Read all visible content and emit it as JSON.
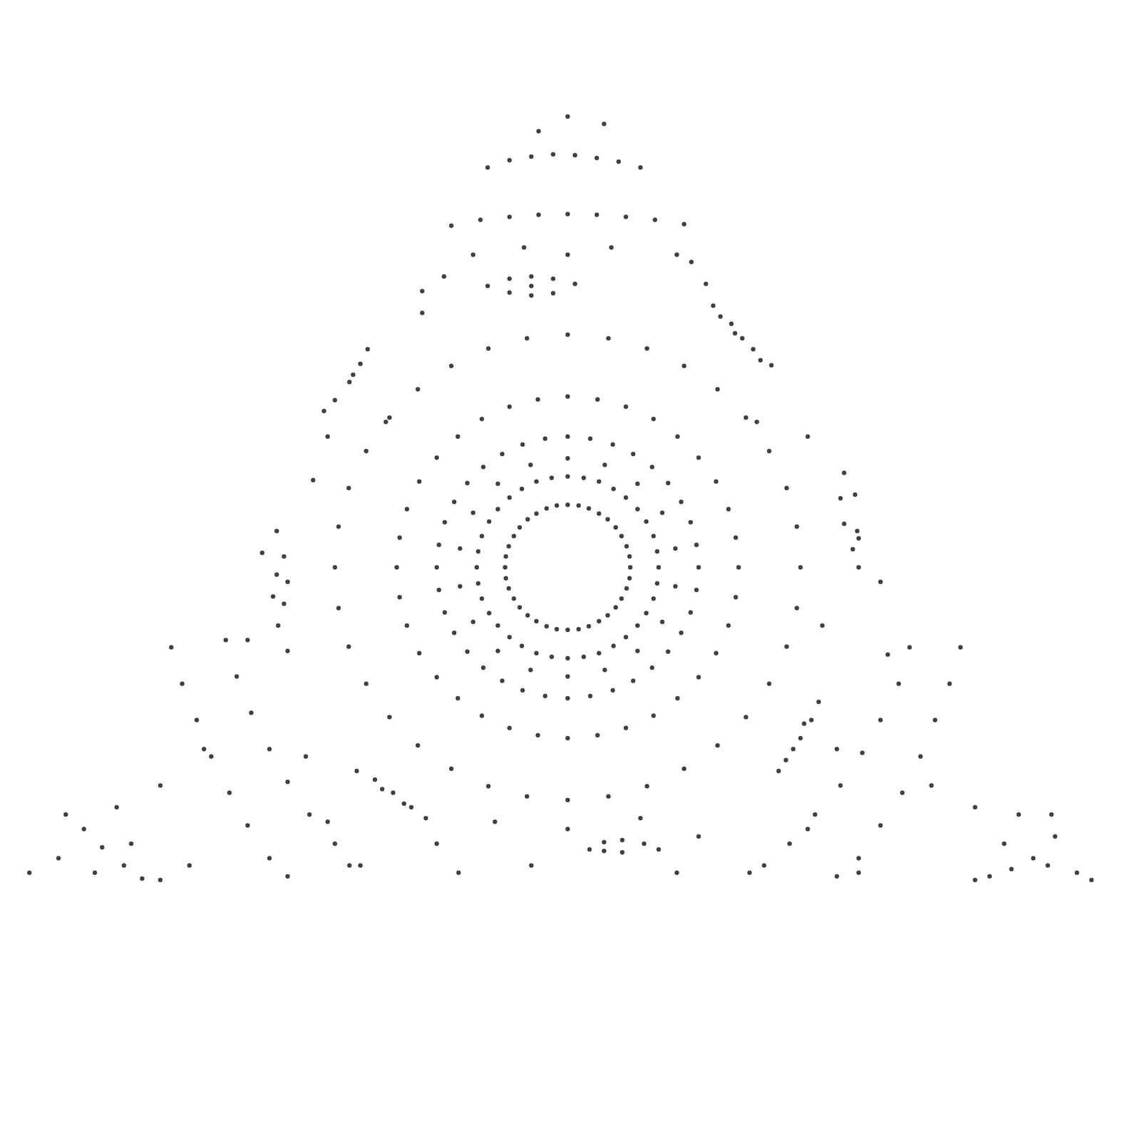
{
  "chart_data": {
    "type": "scatter",
    "color": "#000000",
    "marker": "circle",
    "tick_labels": false,
    "xlim": [
      -780,
      783
    ],
    "ylim": [
      -788,
      780
    ],
    "x": [
      86,
      85,
      81,
      74,
      66,
      55,
      43,
      29,
      15,
      0,
      -15,
      -29,
      -43,
      -55,
      -66,
      -74,
      -81,
      -85,
      -86,
      -85,
      -81,
      -74,
      -66,
      -55,
      -43,
      -29,
      -15,
      0,
      15,
      29,
      43,
      55,
      66,
      74,
      81,
      85,
      125,
      123,
      118,
      108,
      96,
      80,
      63,
      43,
      22,
      0,
      -22,
      -43,
      -63,
      -80,
      -96,
      -108,
      -118,
      -123,
      -125,
      -123,
      -118,
      -108,
      -96,
      -80,
      -63,
      -43,
      -22,
      0,
      22,
      43,
      63,
      80,
      96,
      108,
      118,
      123,
      180,
      177,
      169,
      156,
      138,
      116,
      90,
      62,
      31,
      0,
      -31,
      -62,
      -90,
      -116,
      -138,
      -156,
      -169,
      -177,
      -180,
      -177,
      -169,
      -156,
      -138,
      -116,
      -90,
      -62,
      -31,
      0,
      31,
      62,
      90,
      116,
      138,
      156,
      169,
      177,
      148,
      130,
      96,
      51,
      0,
      -51,
      -96,
      -130,
      -148,
      -148,
      -130,
      -96,
      -51,
      0,
      51,
      96,
      130,
      148,
      235,
      231,
      221,
      204,
      180,
      151,
      118,
      80,
      41,
      0,
      -41,
      -80,
      -118,
      -151,
      -180,
      -204,
      -221,
      -231,
      -235,
      -231,
      -221,
      -204,
      -180,
      -151,
      -118,
      -80,
      -41,
      0,
      41,
      80,
      118,
      151,
      180,
      204,
      221,
      231,
      320,
      315,
      301,
      277,
      245,
      206,
      160,
      109,
      56,
      0,
      -56,
      -109,
      -160,
      -206,
      -245,
      -277,
      -301,
      -315,
      -320,
      -315,
      -301,
      -277,
      -245,
      -206,
      -160,
      -109,
      -56,
      0,
      56,
      109,
      160,
      206,
      245,
      277,
      301,
      315,
      -110,
      -80,
      -50,
      -20,
      10,
      -20,
      -50,
      -80,
      -50,
      210,
      230,
      255,
      280,
      240,
      225,
      265,
      380,
      375,
      380,
      392,
      400,
      398,
      395,
      345,
      335,
      320,
      300,
      290,
      325,
      310,
      30,
      50,
      75,
      105,
      125,
      75,
      50,
      -290,
      -265,
      -240,
      -215,
      -195,
      -255,
      -225,
      -390,
      -400,
      -405,
      -398,
      -385,
      -390,
      -385,
      -275,
      -285,
      -300,
      -320,
      -335,
      -295,
      -110,
      -80,
      -50,
      -20,
      10,
      40,
      70,
      100,
      -160,
      -120,
      -80,
      -40,
      0,
      40,
      80,
      120,
      160,
      -545,
      -530,
      -510,
      -490,
      -465,
      -440,
      -410,
      -385,
      -470,
      -455,
      -435,
      -410,
      -385,
      -355,
      -320,
      -285,
      540,
      525,
      505,
      485,
      460,
      430,
      400,
      370,
      470,
      455,
      430,
      405,
      375,
      340,
      305,
      270,
      -690,
      -665,
      -640,
      -610,
      -585,
      580,
      610,
      640,
      670,
      665,
      0,
      -40,
      50,
      -130,
      150,
      -200,
      190,
      0,
      -60,
      60,
      -350,
      -330,
      330,
      350,
      440,
      -440,
      -500,
      -560,
      -620,
      -600,
      -520,
      -700,
      -650,
      500,
      560,
      600,
      660,
      700,
      620,
      -150,
      -50,
      150,
      250,
      -300,
      400,
      -330,
      330,
      -360,
      370,
      -420,
      400,
      -200,
      200,
      170,
      -170,
      -180,
      180,
      0,
      -100,
      100,
      430,
      -400,
      -250,
      260,
      720,
      -740,
      -560,
      560
    ],
    "values": [
      0,
      15,
      29,
      43,
      55,
      66,
      74,
      81,
      85,
      86,
      85,
      81,
      74,
      66,
      55,
      43,
      29,
      15,
      0,
      -15,
      -29,
      -43,
      -55,
      -66,
      -74,
      -81,
      -85,
      -86,
      -85,
      -81,
      -74,
      -66,
      -55,
      -43,
      -29,
      -15,
      0,
      22,
      43,
      63,
      80,
      96,
      108,
      118,
      123,
      125,
      123,
      118,
      108,
      96,
      80,
      63,
      43,
      22,
      0,
      -22,
      -43,
      -63,
      -80,
      -96,
      -108,
      -118,
      -123,
      -125,
      -123,
      -118,
      -108,
      -96,
      -80,
      -63,
      -43,
      -22,
      0,
      31,
      62,
      90,
      116,
      138,
      156,
      169,
      177,
      180,
      177,
      169,
      156,
      138,
      116,
      90,
      62,
      31,
      0,
      -31,
      -62,
      -90,
      -116,
      -138,
      -156,
      -169,
      -177,
      -180,
      -177,
      -169,
      -156,
      -138,
      -116,
      -90,
      -62,
      -31,
      26,
      75,
      115,
      141,
      150,
      141,
      115,
      75,
      26,
      -26,
      -75,
      -115,
      -141,
      -150,
      -141,
      -115,
      -75,
      -26,
      0,
      41,
      80,
      118,
      151,
      180,
      204,
      221,
      231,
      235,
      231,
      221,
      204,
      180,
      151,
      118,
      80,
      41,
      0,
      -41,
      -80,
      -118,
      -151,
      -180,
      -204,
      -221,
      -231,
      -235,
      -231,
      -221,
      -204,
      -180,
      -151,
      -118,
      -80,
      -41,
      0,
      56,
      109,
      160,
      206,
      245,
      277,
      301,
      315,
      320,
      315,
      301,
      277,
      245,
      206,
      160,
      109,
      56,
      0,
      -56,
      -109,
      -160,
      -206,
      -245,
      -277,
      -301,
      -315,
      -320,
      -315,
      -301,
      -277,
      -245,
      -206,
      -160,
      -109,
      -56,
      387,
      397,
      400,
      397,
      390,
      377,
      374,
      378,
      387,
      345,
      322,
      300,
      278,
      315,
      335,
      285,
      130,
      95,
      60,
      25,
      0,
      50,
      100,
      -185,
      -210,
      -235,
      -265,
      -280,
      -215,
      -250,
      -388,
      -378,
      -375,
      -380,
      -388,
      -392,
      -390,
      -280,
      -292,
      -310,
      -330,
      -345,
      -305,
      -325,
      15,
      -10,
      -40,
      -80,
      -115,
      -50,
      -20,
      300,
      280,
      255,
      230,
      215,
      265,
      550,
      560,
      565,
      568,
      567,
      563,
      558,
      550,
      470,
      478,
      482,
      485,
      486,
      485,
      482,
      478,
      472,
      -110,
      -160,
      -210,
      -260,
      -310,
      -355,
      -400,
      -425,
      -100,
      -150,
      -200,
      -250,
      -295,
      -340,
      -380,
      -410,
      -110,
      -160,
      -210,
      -260,
      -310,
      -355,
      -400,
      -425,
      -110,
      -160,
      -210,
      -255,
      -300,
      -340,
      -380,
      -410,
      -340,
      -360,
      -385,
      -410,
      -428,
      -425,
      -415,
      -400,
      -370,
      -340,
      620,
      600,
      610,
      430,
      430,
      380,
      390,
      430,
      440,
      440,
      120,
      180,
      180,
      -80,
      -120,
      -100,
      -250,
      -300,
      -330,
      -380,
      -410,
      -400,
      -420,
      -300,
      -330,
      -380,
      -410,
      -420,
      -340,
      -420,
      -410,
      -420,
      -420,
      -410,
      -420,
      -350,
      -360,
      -260,
      -250,
      20,
      40,
      350,
      360,
      420,
      400,
      -380,
      -370,
      -360,
      -350,
      -345,
      -20,
      50,
      200,
      200,
      -430,
      -420,
      -430,
      -430
    ]
  }
}
